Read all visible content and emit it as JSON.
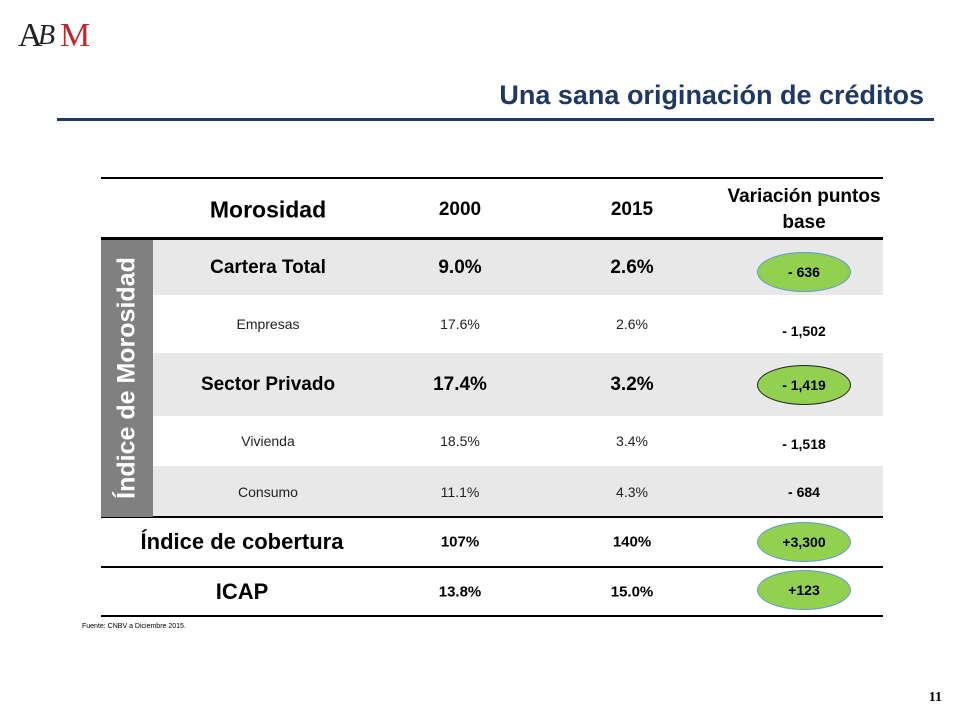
{
  "logo_text": "ABM",
  "title": "Una sana originación de créditos",
  "side_label": "Índice de Morosidad",
  "header": {
    "label": "Morosidad",
    "year1": "2000",
    "year2": "2015",
    "variation": "Variación puntos base"
  },
  "rows": [
    {
      "label": "Cartera Total",
      "v2000": "9.0%",
      "v2015": "2.6%",
      "variation": "- 636"
    },
    {
      "label": "Empresas",
      "v2000": "17.6%",
      "v2015": "2.6%",
      "variation": "- 1,502"
    },
    {
      "label": "Sector Privado",
      "v2000": "17.4%",
      "v2015": "3.2%",
      "variation": "- 1,419"
    },
    {
      "label": "Vivienda",
      "v2000": "18.5%",
      "v2015": "3.4%",
      "variation": "- 1,518"
    },
    {
      "label": "Consumo",
      "v2000": "11.1%",
      "v2015": "4.3%",
      "variation": "- 684"
    },
    {
      "label": "Índice de cobertura",
      "v2000": "107%",
      "v2015": "140%",
      "variation": "+3,300"
    },
    {
      "label": "ICAP",
      "v2000": "13.8%",
      "v2015": "15.0%",
      "variation": "+123"
    }
  ],
  "source": "Fuente: CNBV a Diciembre 2015.",
  "page_number": "11",
  "colors": {
    "title": "#1f3864",
    "highlight": "#92d050",
    "band": "#e8e8e8",
    "side": "#808080"
  }
}
